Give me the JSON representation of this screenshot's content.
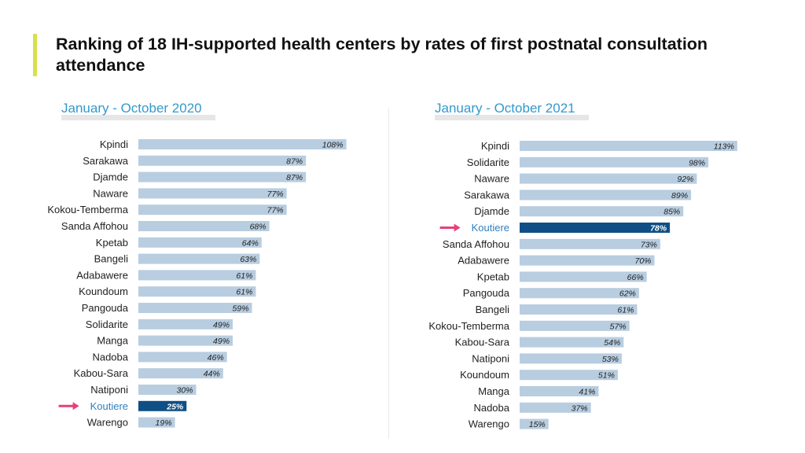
{
  "title": "Ranking of 18 IH-supported health centers by rates of first postnatal consultation attendance",
  "colors": {
    "bar": "#b8cde0",
    "highlight_bar": "#0f4f85",
    "highlight_label": "#2f7fc1",
    "arrow": "#e8407a",
    "subtitle": "#3399cc",
    "accent": "#d7e04a",
    "label": "#222222"
  },
  "chart_data": [
    {
      "type": "bar",
      "orientation": "horizontal",
      "title": "January - October 2020",
      "highlight": "Koutiere",
      "value_suffix": "%",
      "categories": [
        "Kpindi",
        "Sarakawa",
        "Djamde",
        "Naware",
        "Kokou-Temberma",
        "Sanda Affohou",
        "Kpetab",
        "Bangeli",
        "Adabawere",
        "Koundoum",
        "Pangouda",
        "Solidarite",
        "Manga",
        "Nadoba",
        "Kabou-Sara",
        "Natiponi",
        "Koutiere",
        "Warengo"
      ],
      "values": [
        108,
        87,
        87,
        77,
        77,
        68,
        64,
        63,
        61,
        61,
        59,
        49,
        49,
        46,
        44,
        30,
        25,
        19
      ]
    },
    {
      "type": "bar",
      "orientation": "horizontal",
      "title": "January - October 2021",
      "highlight": "Koutiere",
      "value_suffix": "%",
      "categories": [
        "Kpindi",
        "Solidarite",
        "Naware",
        "Sarakawa",
        "Djamde",
        "Koutiere",
        "Sanda Affohou",
        "Adabawere",
        "Kpetab",
        "Pangouda",
        "Bangeli",
        "Kokou-Temberma",
        "Kabou-Sara",
        "Natiponi",
        "Koundoum",
        "Manga",
        "Nadoba",
        "Warengo"
      ],
      "values": [
        113,
        98,
        92,
        89,
        85,
        78,
        73,
        70,
        66,
        62,
        61,
        57,
        54,
        53,
        51,
        41,
        37,
        15
      ]
    }
  ]
}
